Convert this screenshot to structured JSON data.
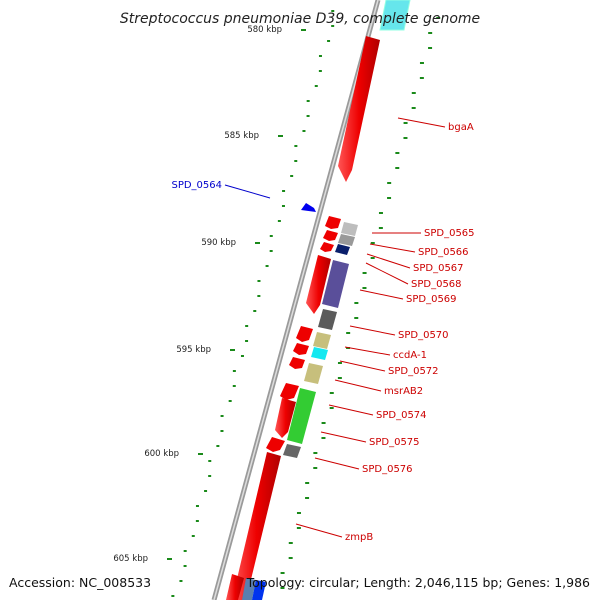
{
  "title": "Streptococcus pneumoniae D39, complete genome",
  "footer": {
    "accession": "Accession: NC_008533",
    "topology": "Topology: circular; Length: 2,046,115 bp; Genes: 1,986"
  },
  "ticks": [
    {
      "label": "580 kbp"
    },
    {
      "label": "585 kbp"
    },
    {
      "label": "590 kbp"
    },
    {
      "label": "595 kbp"
    },
    {
      "label": "600 kbp"
    },
    {
      "label": "605 kbp"
    }
  ],
  "gene_labels": [
    {
      "name": "bgaA",
      "color": "#cc0000"
    },
    {
      "name": "SPD_0564",
      "color": "#0000cc"
    },
    {
      "name": "SPD_0565",
      "color": "#cc0000"
    },
    {
      "name": "SPD_0566",
      "color": "#cc0000"
    },
    {
      "name": "SPD_0567",
      "color": "#cc0000"
    },
    {
      "name": "SPD_0568",
      "color": "#cc0000"
    },
    {
      "name": "SPD_0569",
      "color": "#cc0000"
    },
    {
      "name": "SPD_0570",
      "color": "#cc0000"
    },
    {
      "name": "ccdA-1",
      "color": "#cc0000"
    },
    {
      "name": "SPD_0572",
      "color": "#cc0000"
    },
    {
      "name": "msrAB2",
      "color": "#cc0000"
    },
    {
      "name": "SPD_0574",
      "color": "#cc0000"
    },
    {
      "name": "SPD_0575",
      "color": "#cc0000"
    },
    {
      "name": "SPD_0576",
      "color": "#cc0000"
    },
    {
      "name": "zmpB",
      "color": "#cc0000"
    }
  ],
  "colors": {
    "backbone": "#8a8a8a",
    "gene_arrow": "#ff0000",
    "gc_marks": "#1a8a1a"
  }
}
